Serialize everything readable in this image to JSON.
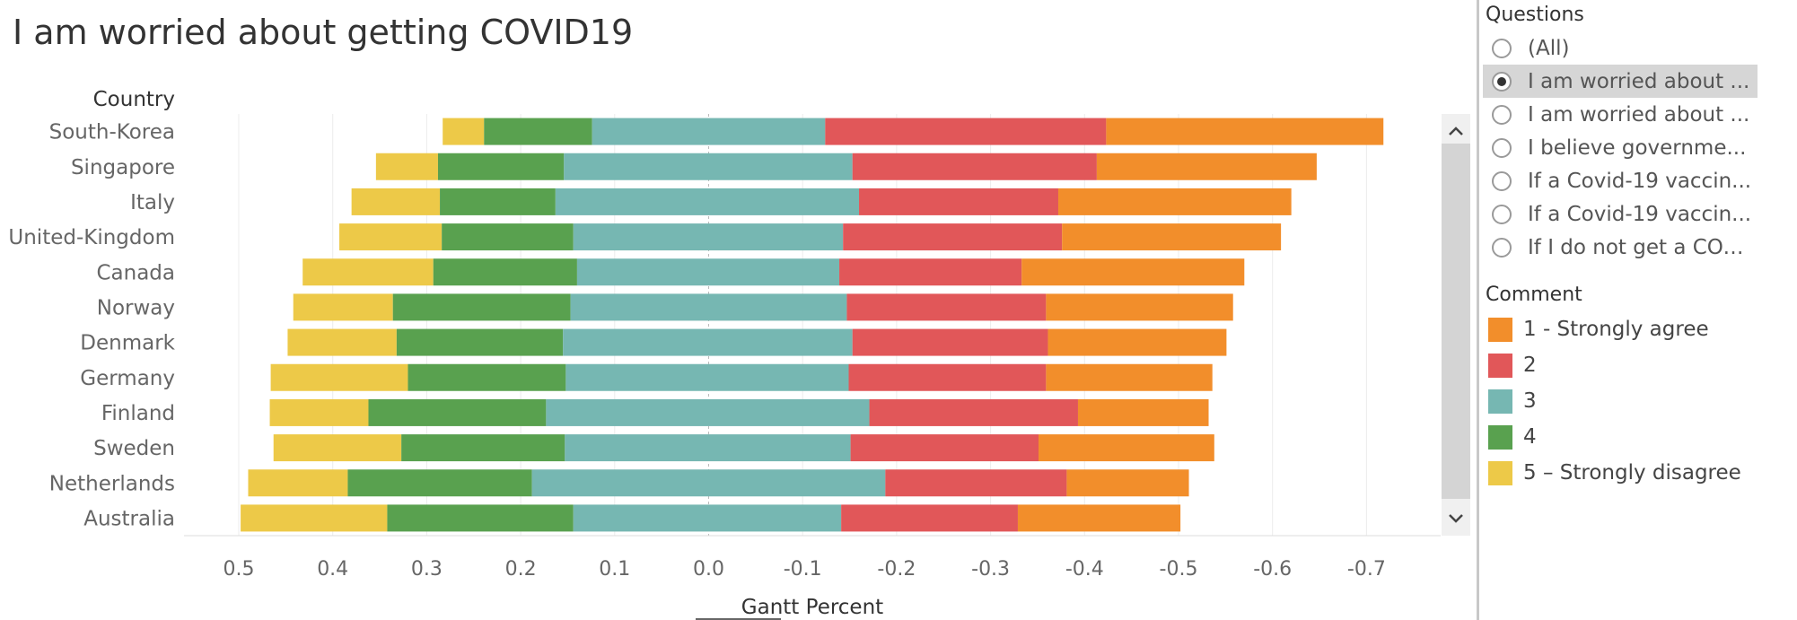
{
  "title": "I am worried about getting COVID19",
  "row_header": "Country",
  "x_axis_title": "Gantt Percent",
  "colors": {
    "1 - Strongly agree": "#f28e2b",
    "2": "#e15759",
    "3": "#76b7b2",
    "4": "#59a14f",
    "5 – Strongly disagree": "#edc948"
  },
  "questions": {
    "title": "Questions",
    "items": [
      {
        "label": "(All)",
        "selected": false
      },
      {
        "label": "I am worried about ...",
        "selected": true
      },
      {
        "label": "I am worried about ...",
        "selected": false
      },
      {
        "label": "I believe governme...",
        "selected": false
      },
      {
        "label": "If a Covid-19 vaccin...",
        "selected": false
      },
      {
        "label": "If a Covid-19 vaccin...",
        "selected": false
      },
      {
        "label": "If I do not get a COV...",
        "selected": false
      }
    ]
  },
  "legend": {
    "title": "Comment",
    "items": [
      "1 - Strongly agree",
      "2",
      "3",
      "4",
      "5 – Strongly disagree"
    ]
  },
  "chart_data": {
    "type": "bar",
    "orientation": "horizontal-stacked-diverging",
    "title": "I am worried about getting COVID19",
    "xlabel": "Gantt Percent",
    "ylabel": "Country",
    "xlim": [
      0.5,
      -0.7
    ],
    "x_ticks": [
      "0.5",
      "0.4",
      "0.3",
      "0.2",
      "0.1",
      "0.0",
      "-0.1",
      "-0.2",
      "-0.3",
      "-0.4",
      "-0.5",
      "-0.6",
      "-0.7"
    ],
    "grid": true,
    "legend_position": "right",
    "categories": [
      "South-Korea",
      "Singapore",
      "Italy",
      "United-Kingdom",
      "Canada",
      "Norway",
      "Denmark",
      "Germany",
      "Finland",
      "Sweden",
      "Netherlands",
      "Australia"
    ],
    "series": [
      {
        "name": "5 – Strongly disagree",
        "start": [
          0.283,
          0.354,
          0.38,
          0.393,
          0.432,
          0.442,
          0.448,
          0.466,
          0.467,
          0.463,
          0.49,
          0.498
        ],
        "end": [
          0.239,
          0.288,
          0.286,
          0.284,
          0.293,
          0.336,
          0.332,
          0.32,
          0.362,
          0.327,
          0.384,
          0.342
        ]
      },
      {
        "name": "4",
        "start": [
          0.239,
          0.288,
          0.286,
          0.284,
          0.293,
          0.336,
          0.332,
          0.32,
          0.362,
          0.327,
          0.384,
          0.342
        ],
        "end": [
          0.124,
          0.154,
          0.163,
          0.144,
          0.14,
          0.147,
          0.155,
          0.152,
          0.173,
          0.153,
          0.188,
          0.144
        ]
      },
      {
        "name": "3",
        "start": [
          0.124,
          0.154,
          0.163,
          0.144,
          0.14,
          0.147,
          0.155,
          0.152,
          0.173,
          0.153,
          0.188,
          0.144
        ],
        "end": [
          -0.124,
          -0.153,
          -0.16,
          -0.143,
          -0.139,
          -0.147,
          -0.153,
          -0.149,
          -0.171,
          -0.151,
          -0.188,
          -0.141
        ]
      },
      {
        "name": "2",
        "start": [
          -0.124,
          -0.153,
          -0.16,
          -0.143,
          -0.139,
          -0.147,
          -0.153,
          -0.149,
          -0.171,
          -0.151,
          -0.188,
          -0.141
        ],
        "end": [
          -0.423,
          -0.413,
          -0.372,
          -0.376,
          -0.333,
          -0.359,
          -0.361,
          -0.359,
          -0.393,
          -0.351,
          -0.381,
          -0.329
        ]
      },
      {
        "name": "1 - Strongly agree",
        "start": [
          -0.423,
          -0.413,
          -0.372,
          -0.376,
          -0.333,
          -0.359,
          -0.361,
          -0.359,
          -0.393,
          -0.351,
          -0.381,
          -0.329
        ],
        "end": [
          -0.718,
          -0.647,
          -0.62,
          -0.609,
          -0.57,
          -0.558,
          -0.551,
          -0.536,
          -0.532,
          -0.538,
          -0.511,
          -0.502
        ]
      }
    ]
  }
}
